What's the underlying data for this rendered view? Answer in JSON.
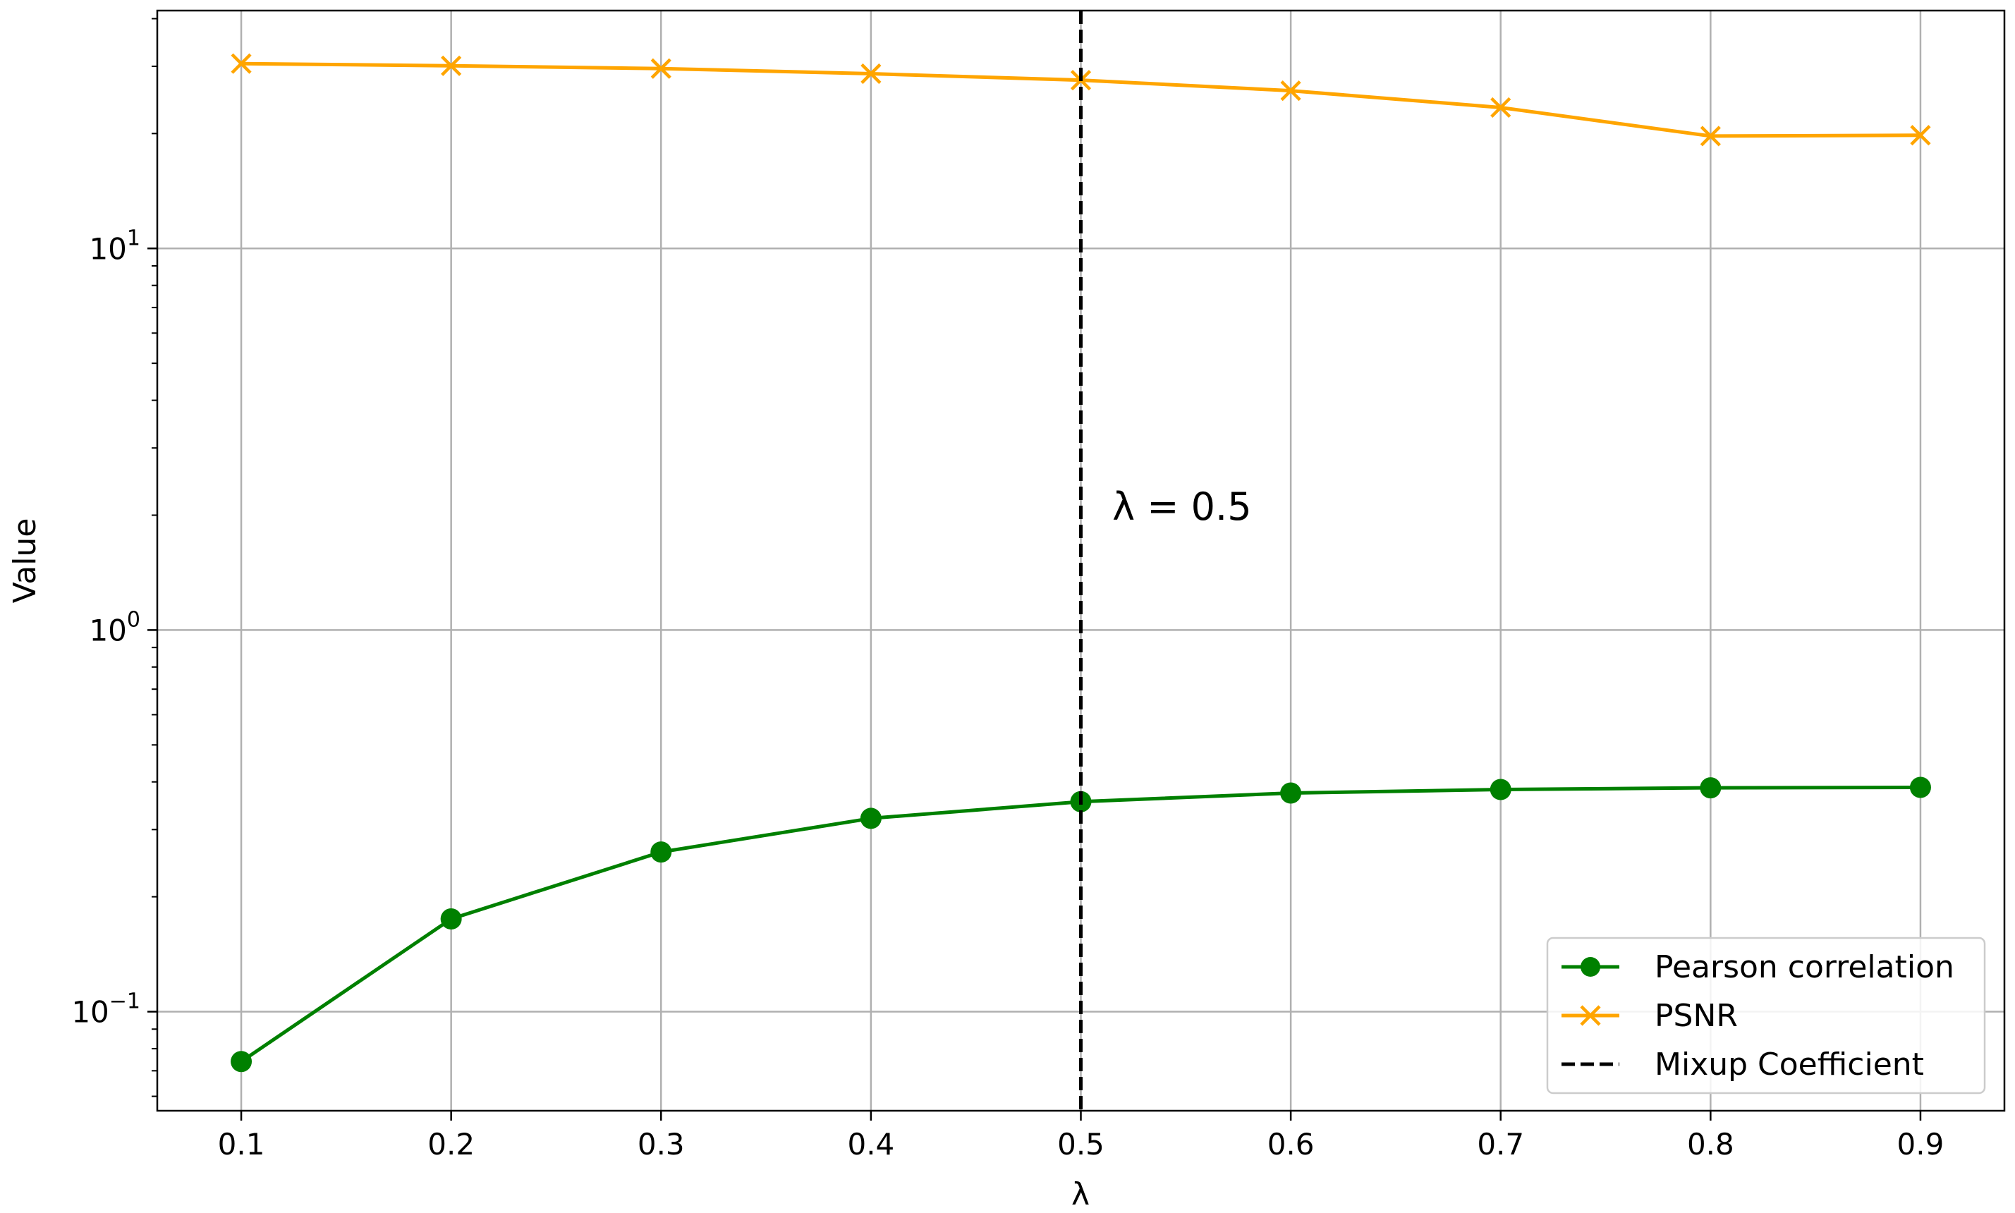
{
  "chart_data": {
    "type": "line",
    "xlabel": "λ",
    "ylabel": "Value",
    "yscale": "log",
    "xlim": [
      0.06,
      0.94
    ],
    "ylim": [
      0.055,
      42
    ],
    "x": [
      0.1,
      0.2,
      0.3,
      0.4,
      0.5,
      0.6,
      0.7,
      0.8,
      0.9
    ],
    "x_tick_labels": [
      "0.1",
      "0.2",
      "0.3",
      "0.4",
      "0.5",
      "0.6",
      "0.7",
      "0.8",
      "0.9"
    ],
    "y_ticks": [
      {
        "value": 0.1,
        "base": "10",
        "exp": "−1"
      },
      {
        "value": 1,
        "base": "10",
        "exp": "0"
      },
      {
        "value": 10,
        "base": "10",
        "exp": "1"
      }
    ],
    "grid": true,
    "series": [
      {
        "name": "Pearson correlation",
        "color": "#008000",
        "marker": "circle",
        "values": [
          0.074,
          0.175,
          0.262,
          0.321,
          0.355,
          0.374,
          0.382,
          0.386,
          0.387
        ]
      },
      {
        "name": "PSNR",
        "color": "#ffa500",
        "marker": "x",
        "values": [
          30.5,
          30.1,
          29.6,
          28.7,
          27.6,
          25.9,
          23.4,
          19.7,
          19.8
        ]
      }
    ],
    "reference_line": {
      "name": "Mixup Coefficient",
      "x": 0.5,
      "style": "dashed",
      "color": "#000000"
    },
    "annotation": {
      "text": "λ = 0.5",
      "x": 0.515,
      "y": 2.1
    },
    "legend": {
      "position": "bottom-right",
      "entries": [
        "Pearson correlation",
        "PSNR",
        "Mixup Coefficient"
      ]
    }
  }
}
